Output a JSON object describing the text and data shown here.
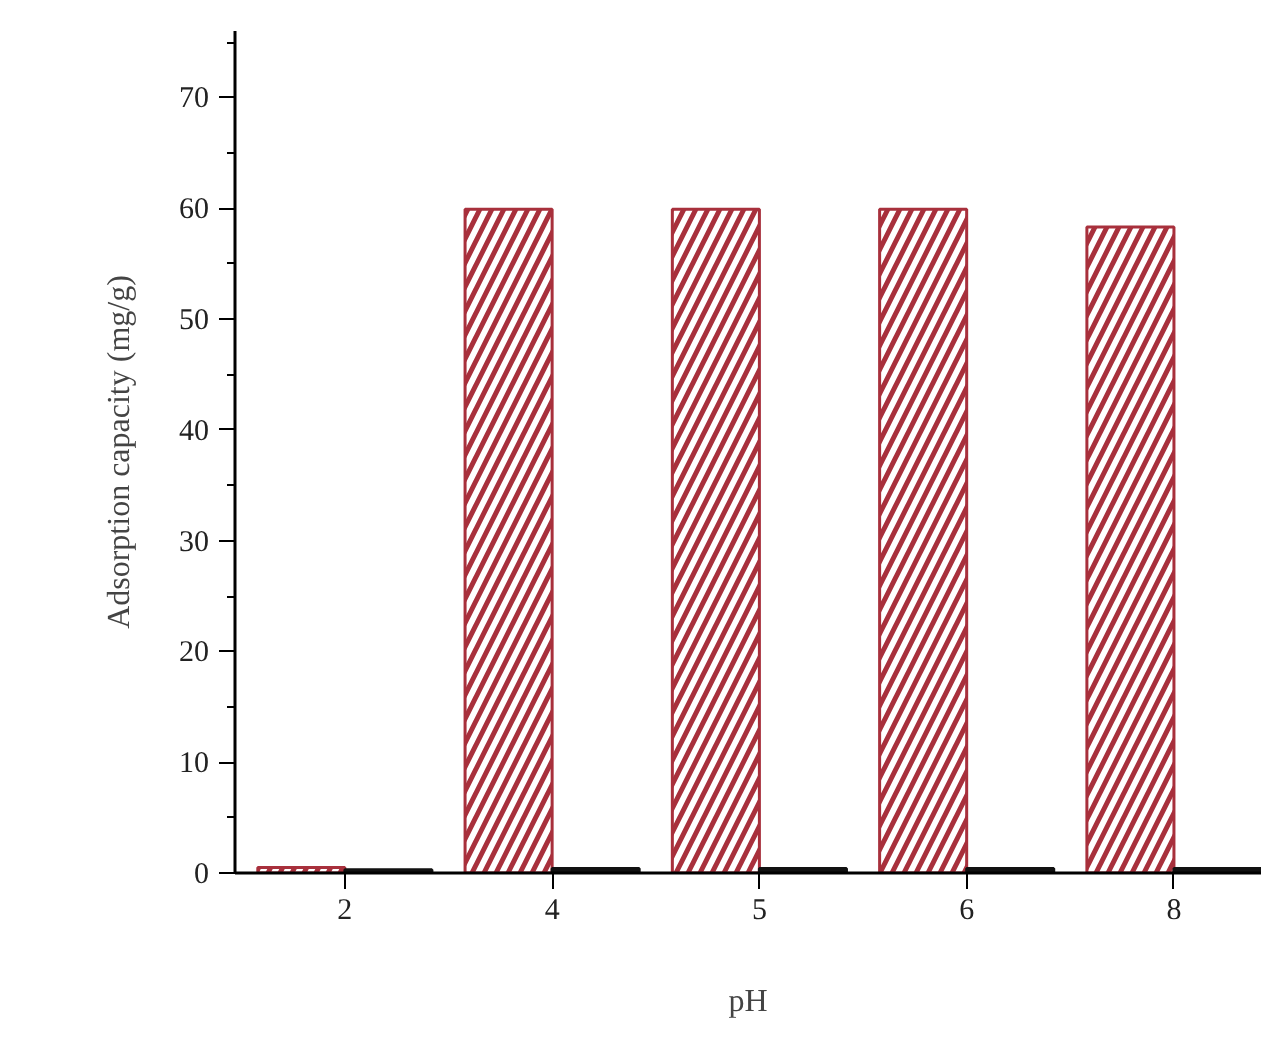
{
  "chart_data": {
    "type": "bar",
    "xlabel": "pH",
    "ylabel": "Adsorption capacity (mg/g)",
    "categories": [
      "2",
      "4",
      "5",
      "6",
      "8"
    ],
    "series": [
      {
        "color": "#a8303c",
        "values": [
          0.5,
          59.9,
          59.9,
          59.9,
          58.3
        ]
      },
      {
        "color": "#111111",
        "values": [
          0.3,
          0.4,
          0.4,
          0.4,
          0.4
        ]
      }
    ],
    "ylim": [
      0,
      76
    ],
    "yticks": [
      0,
      {
        "value": 5,
        "label": null
      },
      10,
      {
        "value": 15,
        "label": null
      },
      20,
      {
        "value": 25,
        "label": null
      },
      30,
      {
        "value": 35,
        "label": null
      },
      40,
      {
        "value": 45,
        "label": null
      },
      50,
      {
        "value": 55,
        "label": null
      },
      60,
      {
        "value": 65,
        "label": null
      },
      70,
      {
        "value": 75,
        "label": null
      }
    ],
    "grid": false
  }
}
